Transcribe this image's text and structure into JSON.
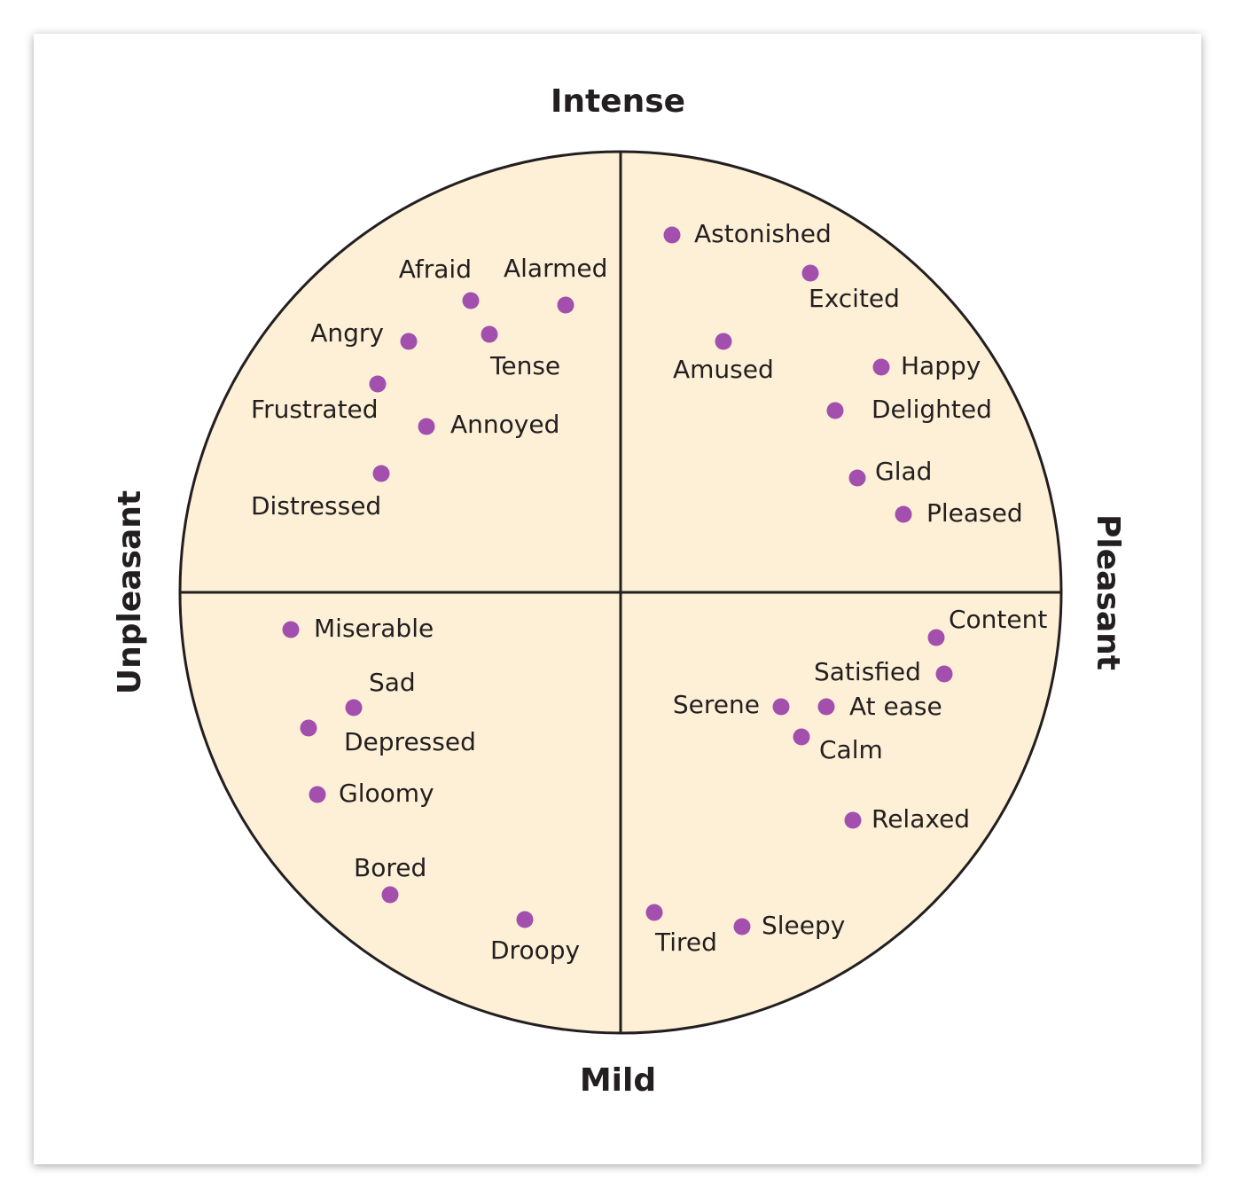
{
  "axes": {
    "top": "Intense",
    "bottom": "Mild",
    "left": "Unpleasant",
    "right": "Pleasant"
  },
  "nodes": [
    {
      "label": "Astonished"
    },
    {
      "label": "Excited"
    },
    {
      "label": "Amused"
    },
    {
      "label": "Happy"
    },
    {
      "label": "Delighted"
    },
    {
      "label": "Glad"
    },
    {
      "label": "Pleased"
    },
    {
      "label": "Afraid"
    },
    {
      "label": "Alarmed"
    },
    {
      "label": "Angry"
    },
    {
      "label": "Tense"
    },
    {
      "label": "Frustrated"
    },
    {
      "label": "Annoyed"
    },
    {
      "label": "Distressed"
    },
    {
      "label": "Miserable"
    },
    {
      "label": "Sad"
    },
    {
      "label": "Depressed"
    },
    {
      "label": "Gloomy"
    },
    {
      "label": "Bored"
    },
    {
      "label": "Droopy"
    },
    {
      "label": "Content"
    },
    {
      "label": "Satisfied"
    },
    {
      "label": "Serene"
    },
    {
      "label": "At ease"
    },
    {
      "label": "Calm"
    },
    {
      "label": "Relaxed"
    },
    {
      "label": "Tired"
    },
    {
      "label": "Sleepy"
    }
  ]
}
